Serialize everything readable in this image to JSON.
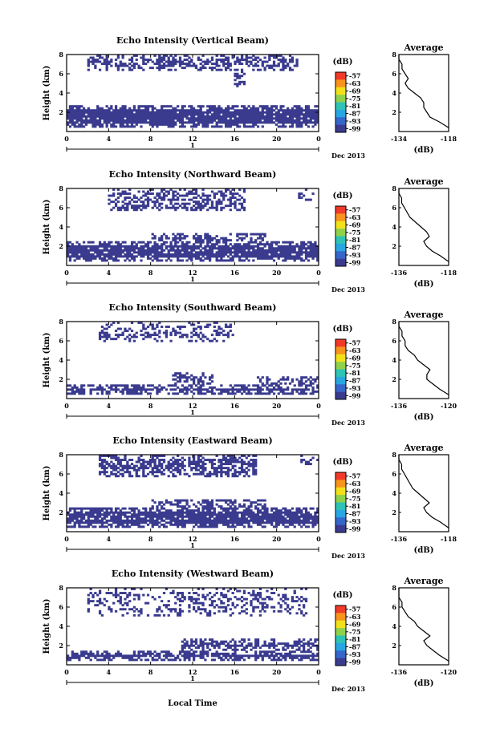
{
  "figure": {
    "xlabel": "Local Time",
    "date_label": "Dec 2013"
  },
  "colorbar": {
    "unit": "(dB)",
    "ticks": [
      "-57",
      "-63",
      "-69",
      "-75",
      "-81",
      "-87",
      "-93",
      "-99"
    ],
    "colors": [
      "#f03a2a",
      "#f8941d",
      "#f2e11a",
      "#8fd14b",
      "#2ec3b4",
      "#28a6e2",
      "#3566c9",
      "#3a3b8f"
    ]
  },
  "chart_data": [
    {
      "type": "heatmap",
      "title": "Echo Intensity (Vertical Beam)",
      "ylabel": "Height (km)",
      "xlim": [
        0,
        24
      ],
      "ylim": [
        0,
        8
      ],
      "xticks": [
        "0",
        "4",
        "8",
        "12",
        "16",
        "20",
        "0"
      ],
      "yticks": [
        "2",
        "4",
        "6",
        "8"
      ],
      "day_marker": "1",
      "fill_color": "#3a3b8f",
      "bands": [
        {
          "t0": 0,
          "t1": 24,
          "h_low": 0.4,
          "h_high": 2.8,
          "density": 0.92
        },
        {
          "t0": 2,
          "t1": 22,
          "h_low": 6.4,
          "h_high": 8.0,
          "density": 0.55
        },
        {
          "t0": 16,
          "t1": 17,
          "h_low": 4.4,
          "h_high": 6.4,
          "density": 0.5
        }
      ],
      "average": {
        "title": "Average",
        "xlabel": "(dB)",
        "xlim": [
          -134,
          -118
        ],
        "xticks": [
          "-134",
          "-118"
        ],
        "yticks": [
          "2",
          "4",
          "6",
          "8"
        ],
        "profile": [
          [
            0.4,
            -118
          ],
          [
            1.0,
            -121
          ],
          [
            1.5,
            -124
          ],
          [
            2.0,
            -125
          ],
          [
            2.5,
            -126
          ],
          [
            3.0,
            -126
          ],
          [
            3.5,
            -127
          ],
          [
            4.0,
            -129
          ],
          [
            4.5,
            -131
          ],
          [
            5.0,
            -132
          ],
          [
            5.5,
            -131
          ],
          [
            6.0,
            -132
          ],
          [
            6.5,
            -133
          ],
          [
            7.0,
            -133
          ],
          [
            7.5,
            -134
          ],
          [
            8.0,
            -134
          ]
        ]
      }
    },
    {
      "type": "heatmap",
      "title": "Echo Intensity (Northward Beam)",
      "ylabel": "Height (km)",
      "xlim": [
        0,
        24
      ],
      "ylim": [
        0,
        8
      ],
      "xticks": [
        "0",
        "4",
        "8",
        "12",
        "16",
        "20",
        "0"
      ],
      "yticks": [
        "2",
        "4",
        "6",
        "8"
      ],
      "day_marker": "1",
      "fill_color": "#3a3b8f",
      "bands": [
        {
          "t0": 0,
          "t1": 24,
          "h_low": 0.4,
          "h_high": 2.6,
          "density": 0.88
        },
        {
          "t0": 8,
          "t1": 19,
          "h_low": 2.6,
          "h_high": 3.4,
          "density": 0.7
        },
        {
          "t0": 4,
          "t1": 17,
          "h_low": 5.6,
          "h_high": 8.0,
          "density": 0.55
        },
        {
          "t0": 22,
          "t1": 24,
          "h_low": 6.8,
          "h_high": 8.0,
          "density": 0.45
        }
      ],
      "average": {
        "title": "Average",
        "xlabel": "(dB)",
        "xlim": [
          -136,
          -118
        ],
        "xticks": [
          "-136",
          "-118"
        ],
        "yticks": [
          "2",
          "4",
          "6",
          "8"
        ],
        "profile": [
          [
            0.4,
            -118
          ],
          [
            1.0,
            -121
          ],
          [
            1.5,
            -124
          ],
          [
            2.0,
            -126
          ],
          [
            2.5,
            -127
          ],
          [
            3.0,
            -125
          ],
          [
            3.5,
            -126
          ],
          [
            4.0,
            -128
          ],
          [
            4.5,
            -130
          ],
          [
            5.0,
            -132
          ],
          [
            5.5,
            -133
          ],
          [
            6.0,
            -134
          ],
          [
            6.5,
            -135
          ],
          [
            7.0,
            -135
          ],
          [
            7.5,
            -136
          ],
          [
            8.0,
            -136
          ]
        ]
      }
    },
    {
      "type": "heatmap",
      "title": "Echo Intensity (Southward Beam)",
      "ylabel": "Height (km)",
      "xlim": [
        0,
        24
      ],
      "ylim": [
        0,
        8
      ],
      "xticks": [
        "0",
        "4",
        "8",
        "12",
        "16",
        "20",
        "0"
      ],
      "yticks": [
        "2",
        "4",
        "6",
        "8"
      ],
      "day_marker": "1",
      "fill_color": "#3a3b8f",
      "bands": [
        {
          "t0": 0,
          "t1": 24,
          "h_low": 0.4,
          "h_high": 1.4,
          "density": 0.85
        },
        {
          "t0": 10,
          "t1": 14,
          "h_low": 1.4,
          "h_high": 2.8,
          "density": 0.75
        },
        {
          "t0": 18,
          "t1": 24,
          "h_low": 1.4,
          "h_high": 2.4,
          "density": 0.7
        },
        {
          "t0": 3,
          "t1": 16,
          "h_low": 6.0,
          "h_high": 8.0,
          "density": 0.35
        }
      ],
      "average": {
        "title": "Average",
        "xlabel": "(dB)",
        "xlim": [
          -136,
          -120
        ],
        "xticks": [
          "-136",
          "-120"
        ],
        "yticks": [
          "2",
          "4",
          "6",
          "8"
        ],
        "profile": [
          [
            0.4,
            -120
          ],
          [
            1.0,
            -123
          ],
          [
            1.5,
            -125
          ],
          [
            2.0,
            -127
          ],
          [
            2.5,
            -127
          ],
          [
            3.0,
            -126
          ],
          [
            3.5,
            -128
          ],
          [
            4.0,
            -130
          ],
          [
            4.5,
            -131
          ],
          [
            5.0,
            -133
          ],
          [
            5.5,
            -134
          ],
          [
            6.0,
            -134
          ],
          [
            6.5,
            -135
          ],
          [
            7.0,
            -135
          ],
          [
            7.5,
            -136
          ],
          [
            8.0,
            -136
          ]
        ]
      }
    },
    {
      "type": "heatmap",
      "title": "Echo Intensity (Eastward Beam)",
      "ylabel": "Height (km)",
      "xlim": [
        0,
        24
      ],
      "ylim": [
        0,
        8
      ],
      "xticks": [
        "0",
        "4",
        "8",
        "12",
        "16",
        "20",
        "0"
      ],
      "yticks": [
        "2",
        "4",
        "6",
        "8"
      ],
      "day_marker": "1",
      "fill_color": "#3a3b8f",
      "bands": [
        {
          "t0": 0,
          "t1": 24,
          "h_low": 0.4,
          "h_high": 2.6,
          "density": 0.88
        },
        {
          "t0": 8,
          "t1": 19,
          "h_low": 2.6,
          "h_high": 3.4,
          "density": 0.75
        },
        {
          "t0": 3,
          "t1": 18,
          "h_low": 5.6,
          "h_high": 8.0,
          "density": 0.6
        },
        {
          "t0": 22,
          "t1": 24,
          "h_low": 6.8,
          "h_high": 8.0,
          "density": 0.45
        }
      ],
      "average": {
        "title": "Average",
        "xlabel": "(dB)",
        "xlim": [
          -136,
          -118
        ],
        "xticks": [
          "-136",
          "-118"
        ],
        "yticks": [
          "2",
          "4",
          "6",
          "8"
        ],
        "profile": [
          [
            0.4,
            -118
          ],
          [
            1.0,
            -121
          ],
          [
            1.5,
            -124
          ],
          [
            2.0,
            -126
          ],
          [
            2.5,
            -127
          ],
          [
            3.0,
            -125
          ],
          [
            3.5,
            -127
          ],
          [
            4.0,
            -129
          ],
          [
            4.5,
            -131
          ],
          [
            5.0,
            -132
          ],
          [
            5.5,
            -133
          ],
          [
            6.0,
            -134
          ],
          [
            6.5,
            -135
          ],
          [
            7.0,
            -135
          ],
          [
            7.5,
            -136
          ],
          [
            8.0,
            -136
          ]
        ]
      }
    },
    {
      "type": "heatmap",
      "title": "Echo Intensity (Westward Beam)",
      "ylabel": "Height (km)",
      "xlim": [
        0,
        24
      ],
      "ylim": [
        0,
        8
      ],
      "xticks": [
        "0",
        "4",
        "8",
        "12",
        "16",
        "20",
        "0"
      ],
      "yticks": [
        "2",
        "4",
        "6",
        "8"
      ],
      "day_marker": "1",
      "fill_color": "#3a3b8f",
      "bands": [
        {
          "t0": 0,
          "t1": 24,
          "h_low": 0.4,
          "h_high": 1.4,
          "density": 0.88
        },
        {
          "t0": 11,
          "t1": 24,
          "h_low": 1.4,
          "h_high": 2.8,
          "density": 0.7
        },
        {
          "t0": 2,
          "t1": 23,
          "h_low": 5.0,
          "h_high": 8.0,
          "density": 0.3
        }
      ],
      "average": {
        "title": "Average",
        "xlabel": "(dB)",
        "xlim": [
          -136,
          -120
        ],
        "xticks": [
          "-136",
          "-120"
        ],
        "yticks": [
          "2",
          "4",
          "6",
          "8"
        ],
        "profile": [
          [
            0.4,
            -120
          ],
          [
            1.0,
            -123
          ],
          [
            1.5,
            -125
          ],
          [
            2.0,
            -127
          ],
          [
            2.5,
            -128
          ],
          [
            3.0,
            -126
          ],
          [
            3.5,
            -128
          ],
          [
            4.0,
            -130
          ],
          [
            4.5,
            -131
          ],
          [
            5.0,
            -133
          ],
          [
            5.5,
            -134
          ],
          [
            6.0,
            -135
          ],
          [
            6.5,
            -135
          ],
          [
            7.0,
            -136
          ],
          [
            7.5,
            -136
          ],
          [
            8.0,
            -136
          ]
        ]
      }
    }
  ]
}
